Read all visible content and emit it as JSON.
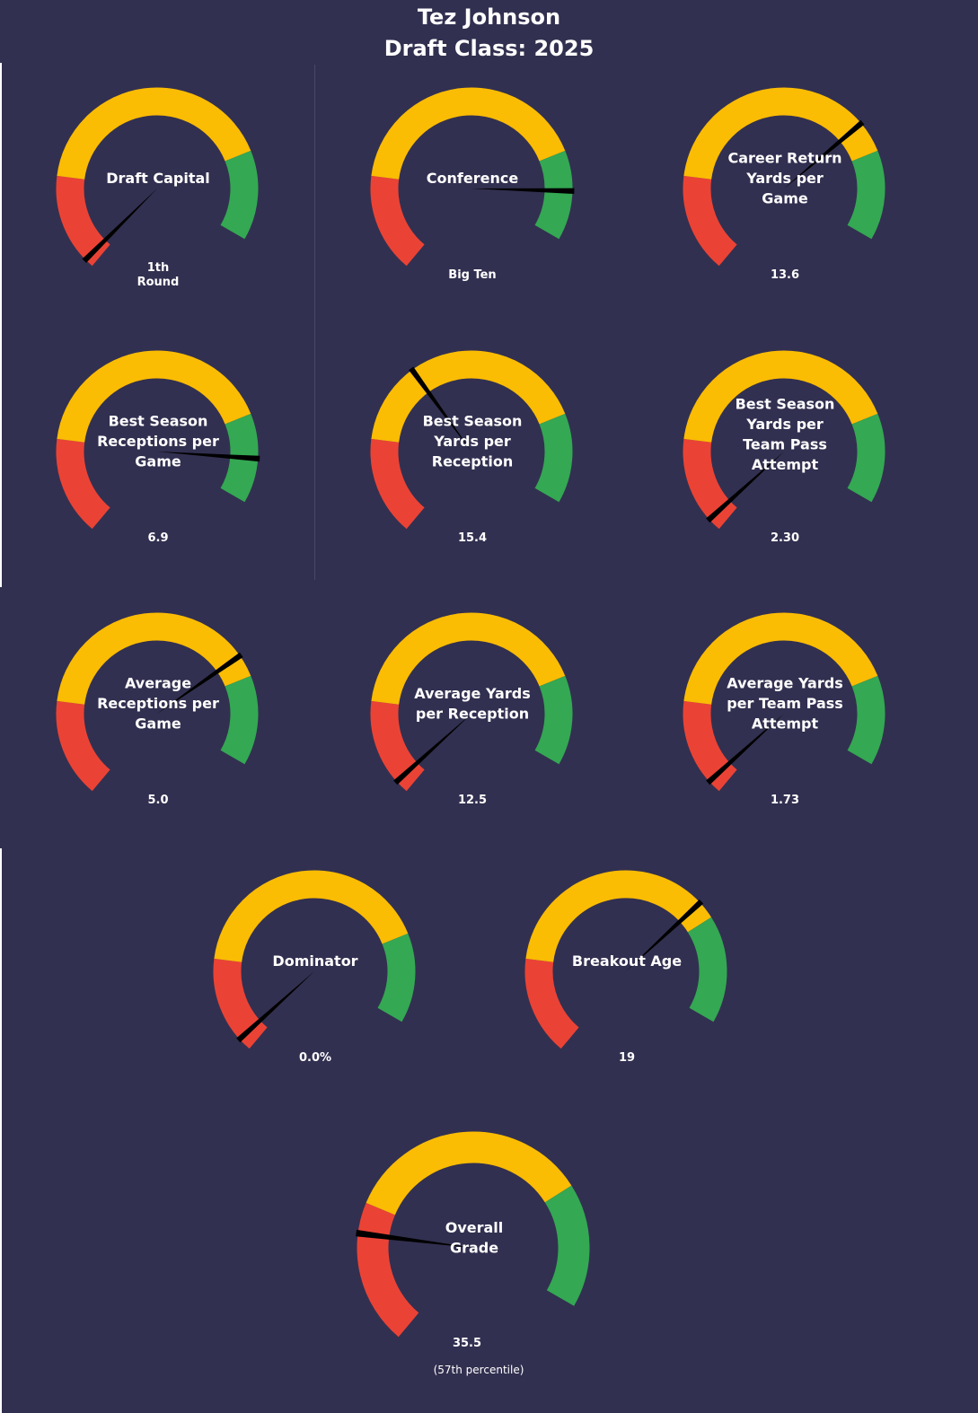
{
  "header": {
    "player_name": "Tez Johnson",
    "draft_class": "Draft Class: 2025"
  },
  "colors": {
    "background": "#323050",
    "poor": "#ea4335",
    "average": "#fbbc04",
    "good": "#34a853",
    "needle": "#000000",
    "text": "#ffffff"
  },
  "chart_data": {
    "type": "gauge",
    "bands": [
      "poor",
      "average",
      "good"
    ],
    "gauges": [
      {
        "title": [
          "Draft Capital"
        ],
        "value_label": [
          "1th",
          "Round"
        ],
        "needle_position": 0.02,
        "red_end": 0.22,
        "yellow_end": 0.8
      },
      {
        "title": [
          "Conference"
        ],
        "value_label": [
          "Big Ten"
        ],
        "needle_position": 0.89,
        "red_end": 0.22,
        "yellow_end": 0.8
      },
      {
        "title": [
          "Career Return",
          "Yards per",
          "Game"
        ],
        "value_label": [
          "13.6"
        ],
        "needle_position": 0.73,
        "red_end": 0.22,
        "yellow_end": 0.8
      },
      {
        "title": [
          "Best Season",
          "Receptions per",
          "Game"
        ],
        "value_label": [
          "6.9"
        ],
        "needle_position": 0.9,
        "red_end": 0.22,
        "yellow_end": 0.8
      },
      {
        "title": [
          "Best Season",
          "Yards per",
          "Reception"
        ],
        "value_label": [
          "15.4"
        ],
        "needle_position": 0.4,
        "red_end": 0.22,
        "yellow_end": 0.8
      },
      {
        "title": [
          "Best Season",
          "Yards per",
          "Team Pass",
          "Attempt"
        ],
        "value_label": [
          "2.30"
        ],
        "needle_position": 0.03,
        "red_end": 0.22,
        "yellow_end": 0.8
      },
      {
        "title": [
          "Average",
          "Receptions per",
          "Game"
        ],
        "value_label": [
          "5.0"
        ],
        "needle_position": 0.75,
        "red_end": 0.22,
        "yellow_end": 0.8
      },
      {
        "title": [
          "Average Yards",
          "per Reception"
        ],
        "value_label": [
          "12.5"
        ],
        "needle_position": 0.03,
        "red_end": 0.22,
        "yellow_end": 0.8
      },
      {
        "title": [
          "Average Yards",
          "per Team Pass",
          "Attempt"
        ],
        "value_label": [
          "1.73"
        ],
        "needle_position": 0.03,
        "red_end": 0.22,
        "yellow_end": 0.8
      },
      {
        "title": [
          "Dominator"
        ],
        "value_label": [
          "0.0%"
        ],
        "needle_position": 0.03,
        "red_end": 0.22,
        "yellow_end": 0.8
      },
      {
        "title": [
          "Breakout Age"
        ],
        "value_label": [
          "19"
        ],
        "needle_position": 0.72,
        "red_end": 0.22,
        "yellow_end": 0.76
      },
      {
        "title": [
          "Overall",
          "Grade"
        ],
        "value_label": [
          "35.5",
          "(57th  percentile)"
        ],
        "needle_position": 0.22,
        "red_end": 0.28,
        "yellow_end": 0.76
      }
    ]
  }
}
